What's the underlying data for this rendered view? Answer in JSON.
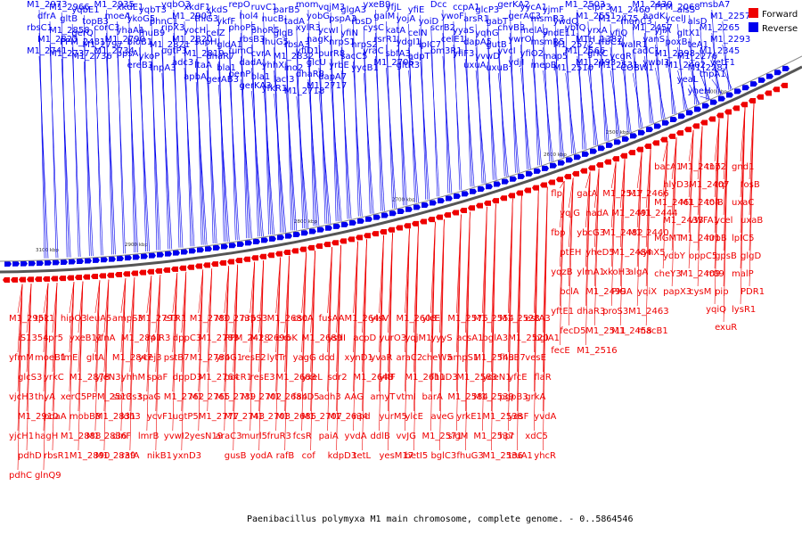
{
  "caption": "Paenibacillus polymyxa M1 main chromosome, complete genome. - 0..5864546",
  "legend": [
    {
      "label": "Forward",
      "color": "#ee0000"
    },
    {
      "label": "Reverse",
      "color": "#0000ee"
    }
  ],
  "colors": {
    "forward": "#ee0000",
    "reverse": "#0000ee",
    "backbone": "#555555"
  },
  "ticks": [
    "3100 kbp",
    "2900 kbp",
    "2800 kbp",
    "2700 kbp",
    "2600 kbp",
    "2500 kbp",
    "2400 kbp"
  ],
  "reverse_labels": [
    [
      "M1_2973",
      "dfrA",
      "rbsC1",
      "M1_2823",
      "M1_2741"
    ],
    [
      "M1_2966",
      "gltB",
      "M1_2858",
      "PPM_2481",
      "M1_2737"
    ],
    [
      "yqbE1",
      "topB3",
      "gerQ",
      "M1_2797",
      "M1_2736"
    ],
    [
      "M1_2935",
      "moeA",
      "corC3",
      "M1_2790",
      "M1_2734"
    ],
    [
      "xkdE1",
      "ykoG5",
      "yhaA1",
      "bioB1",
      "ppsA",
      "ereB3"
    ],
    [
      "yqbT3",
      "phnC1",
      "fhuB9",
      "M1_2821",
      "ykoP",
      "tnpA3"
    ],
    [
      "yqbO3",
      "M1_2907",
      "ripX3",
      "M1_2820",
      "ugtP3",
      "adc3"
    ],
    [
      "xkdF1",
      "thiG3",
      "yocH",
      "supH",
      "M1_2819",
      "ltaA",
      "apbA"
    ],
    [
      "xkdS",
      "ykfF",
      "celZ",
      "gldA1",
      "dhaR7",
      "bla1",
      "gerAB3"
    ],
    [
      "repO",
      "hol4",
      "phoP5",
      "rbsB3",
      "fumC",
      "dadA",
      "penP",
      "gerKA3"
    ],
    [
      "ruvC1",
      "nucB",
      "phoR5",
      "fhuG5",
      "cvrA",
      "yhhX",
      "bla1",
      "yfkR1"
    ],
    [
      "parB5",
      "tadA",
      "glgB",
      "rbsA3",
      "M1_2832",
      "ino2",
      "lacI3",
      "M1_2718"
    ],
    [
      "mom",
      "yobG",
      "xylR3",
      "nagK",
      "yfiD1",
      "glcU",
      "dhaR8",
      "M1_2717"
    ],
    [
      "vqjM3",
      "pspA3",
      "ycwI",
      "nrpS1",
      "purR8",
      "yrbE",
      "dapA7"
    ],
    [
      "glgA3",
      "rbsD",
      "yfiN",
      "nrpS2",
      "sacC5",
      "yycB1"
    ],
    [
      "yxeB9",
      "galM",
      "cysC",
      "rsrR1",
      "yraC",
      "M1_2706"
    ],
    [
      "yfjL",
      "yojA",
      "katA",
      "ydgI1",
      "sbfA3",
      "gltR3"
    ],
    [
      "yfiE",
      "yoiD",
      "celN",
      "ipIC7",
      "adpT"
    ],
    [
      "Dcc",
      "ywoF",
      "scrB2",
      "celE1",
      "bm3R1"
    ],
    [
      "ccpA1",
      "arsR1",
      "yyaS",
      "dapA5",
      "yfiF3",
      "uxuA"
    ],
    [
      "glcP3",
      "gabT",
      "yqhG",
      "gutB",
      "yvwD",
      "uxuB"
    ],
    [
      "gerKA2",
      "gerAC3",
      "chvB3",
      "ywrO",
      "yvcI",
      "ydjI"
    ],
    [
      "yycA1",
      "msmR3",
      "melAg",
      "msmR5",
      "yfiO2",
      "mepB"
    ],
    [
      "yjmF",
      "ywdQ",
      "yndE11",
      "M1_2572",
      "map5",
      "M1_2510"
    ],
    [
      "M1_2503",
      "M1_2551",
      "ybfQ",
      "MTH_1382",
      "M1_2566",
      "M1_2493"
    ],
    [
      "clpP3",
      "M1_2475",
      "yrxA",
      "rfbC1",
      "grkC",
      "M1_2531"
    ],
    [
      "M1_2460",
      "manC3",
      "yfiQ",
      "walR1",
      "ycgR",
      "COBW1"
    ],
    [
      "M1_2439",
      "aadK",
      "M1_2457",
      "vanS",
      "cadC1",
      "ywbI3"
    ],
    [
      "PPM_2068",
      "ycelJ",
      "yjiA",
      "poxB",
      "M1_2398",
      "M1_2402"
    ],
    [
      "alsS",
      "alsD",
      "gltX1",
      "teA1",
      "M1_2276",
      "M1_2287",
      "yeaL",
      "yheH"
    ],
    [
      "msbA7",
      "M1_2257",
      "M1_2265",
      "M1_2293",
      "M1_2345",
      "yetF1",
      "tnpA1"
    ]
  ],
  "forward_labels": [
    [
      "M1_2951",
      "iS1354",
      "yfmM",
      "glcS3",
      "vjcH3",
      "M1_2910",
      "yjcH1",
      "pdhD",
      "pdhC"
    ],
    [
      "tpk1",
      "spr5",
      "moeB1",
      "yrkC",
      "thyA",
      "pdaA",
      "hagH",
      "rbsR1",
      "glnQ9"
    ],
    [
      "hipO3",
      "yxeB11",
      "fmE",
      "M1_2878",
      "xerC5",
      "mobB3",
      "M1_2888",
      "M1_2890"
    ],
    [
      "leuA5",
      "yfnA",
      "gltA",
      "yjeN3",
      "PPM_2513",
      "M1_2831",
      "M1_2836",
      "M1_2839"
    ],
    [
      "ampS3",
      "M1_2841",
      "M1_2847",
      "yhhM",
      "sorCs3",
      "ldh3",
      "dinF",
      "rafA"
    ],
    [
      "M1_2793",
      "rpiR3",
      "ycej3",
      "spaF",
      "spaG",
      "ycvF1",
      "lmrB",
      "nikB1"
    ],
    [
      "eTR1",
      "dppC3",
      "pstB7",
      "dppD3",
      "M1_2762",
      "ugtP5",
      "yvwI2",
      "yxnD3"
    ],
    [
      "M1_2780",
      "M1_2783",
      "M1_2784",
      "M1_2764",
      "M1_2765",
      "M1_2777",
      "yesN19"
    ],
    [
      "M1_2735",
      "PPM_2428",
      "yrbG1",
      "pocR1",
      "M1_2739",
      "M1_2743",
      "araC3",
      "gusB"
    ],
    [
      "nrpS3",
      "M1_2696",
      "resE2",
      "resE3",
      "M1_2702",
      "M1_2703",
      "murl5",
      "yodA"
    ],
    [
      "M1_2680",
      "exoK",
      "lytTr",
      "M1_2683",
      "M1_2684",
      "M1_2685",
      "fruR3",
      "rafB"
    ],
    [
      "cscA",
      "M1_2689",
      "yagG",
      "yxeL",
      "fabD5",
      "M1_2707",
      "fcsR",
      "cof"
    ],
    [
      "fusAA",
      "ysdI",
      "dcd",
      "sdr2",
      "adh3",
      "M1_2634",
      "paiA",
      "kdpD3"
    ],
    [
      "M1_2644",
      "acpD",
      "xynD1",
      "M1_2648",
      "AAG",
      "npd",
      "yvdA",
      "tetL"
    ],
    [
      "yisV",
      "yurO3",
      "yvaR",
      "yitF",
      "amyT",
      "yurM5",
      "ddlB",
      "yesM17"
    ],
    [
      "M1_2608",
      "yqjM1",
      "araC2",
      "M1_2611",
      "vtmI",
      "ylcE",
      "vvJG",
      "betI5"
    ],
    [
      "ylcE",
      "yyyS",
      "cheW5",
      "fhuD3",
      "barA",
      "aveG",
      "M1_2571",
      "bglC3"
    ],
    [
      "M1_2575",
      "acsA1",
      "ampS1",
      "M1_2583",
      "M1_2584",
      "yrkE1",
      "sigM",
      "fhuG3"
    ],
    [
      "M1_2554",
      "bglA3",
      "M1_2548",
      "ydeN1",
      "M1_2539",
      "M1_2538",
      "M1_2537",
      "M1_2536"
    ],
    [
      "M1_2528",
      "M1_2520",
      "fhuB7",
      "yfcE",
      "pgpB3",
      "yesF",
      "hpr",
      "truA1"
    ],
    [
      "estA3",
      "bglA1",
      "vesE",
      "flaR",
      "grkA",
      "yvdA",
      "xdC5",
      "yhcR"
    ],
    [
      "flp",
      "yqjG",
      "fbp",
      "ptEH",
      "yqzB",
      "bclA",
      "yftE1",
      "fecD5",
      "fecE"
    ],
    [
      "gatA",
      "nadA",
      "ybcG3",
      "yheD5",
      "ylmA1",
      "M1_2499",
      "dhaR3",
      "M1_2511",
      "M1_2516"
    ],
    [
      "M1_2517",
      "M1_2491",
      "M1_2482",
      "M1_2484",
      "xkoH3",
      "PIGA",
      "proS3",
      "M1_2458"
    ],
    [
      "M1_2466",
      "M1_2444",
      "M1_2440",
      "xynX5",
      "algA",
      "yqiX",
      "M1_2463",
      "macB1"
    ],
    [
      "bacA1",
      "hlyD3",
      "M1_2461",
      "M1_2433",
      "MGMT",
      "ydbY",
      "cheY3",
      "papX3"
    ],
    [
      "M1_2417",
      "M1_2407",
      "M1_2404",
      "vWFA1",
      "M1_2401",
      "oppC5",
      "M1_2409",
      "cysM"
    ],
    [
      "tnp2",
      "trp",
      "tolB",
      "ycel",
      "hrpB",
      "gpsB",
      "rr09",
      "pip",
      "yqiQ",
      "exuR"
    ],
    [
      "gnd1",
      "fosB",
      "uxaC",
      "uxaB",
      "lpIC5",
      "glgD",
      "malP",
      "PDR1",
      "lysR1"
    ]
  ]
}
